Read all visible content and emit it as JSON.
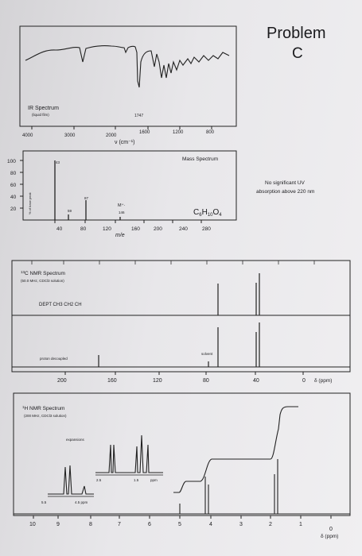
{
  "problem": {
    "title": "Problem",
    "letter": "C"
  },
  "ir": {
    "label": "IR Spectrum",
    "sublabel": "(liquid film)",
    "peak_label": "1747",
    "axis_ticks": [
      "4000",
      "3000",
      "2000",
      "1600",
      "1200",
      "800"
    ],
    "xlabel": "ν (cm⁻¹)"
  },
  "ms": {
    "label": "Mass Spectrum",
    "y_ticks": [
      "100",
      "80",
      "60",
      "40",
      "20"
    ],
    "ylabel": "% of base peak",
    "x_ticks": [
      "40",
      "80",
      "120",
      "160",
      "200",
      "240",
      "280"
    ],
    "xlabel": "m/e",
    "peak_labels": [
      "43",
      "59",
      "87",
      "M⁺·",
      "146"
    ],
    "formula": "C6H10O4"
  },
  "uv": {
    "note_line1": "No significant UV",
    "note_line2": "absorption above 220 nm"
  },
  "c13": {
    "label": "13C NMR Spectrum",
    "sublabel": "(50.0 MHz, CDCl3 solution)",
    "dept": "DEPT CH3 CH2 CH",
    "proton_decoupled": "proton decoupled",
    "solvent": "solvent",
    "x_ticks": [
      "200",
      "160",
      "120",
      "80",
      "40",
      "0"
    ],
    "unit": "δ (ppm)"
  },
  "h1": {
    "label": "1H NMR Spectrum",
    "sublabel": "(200 MHz, CDCl3 solution)",
    "expansions": "expansions",
    "inset_ticks": [
      "5.5",
      "4.5 ppm",
      "2.5",
      "1.5",
      "ppm"
    ],
    "x_ticks": [
      "10",
      "9",
      "8",
      "7",
      "6",
      "5",
      "4",
      "3",
      "2",
      "1",
      "0"
    ],
    "unit": "δ (ppm)"
  }
}
